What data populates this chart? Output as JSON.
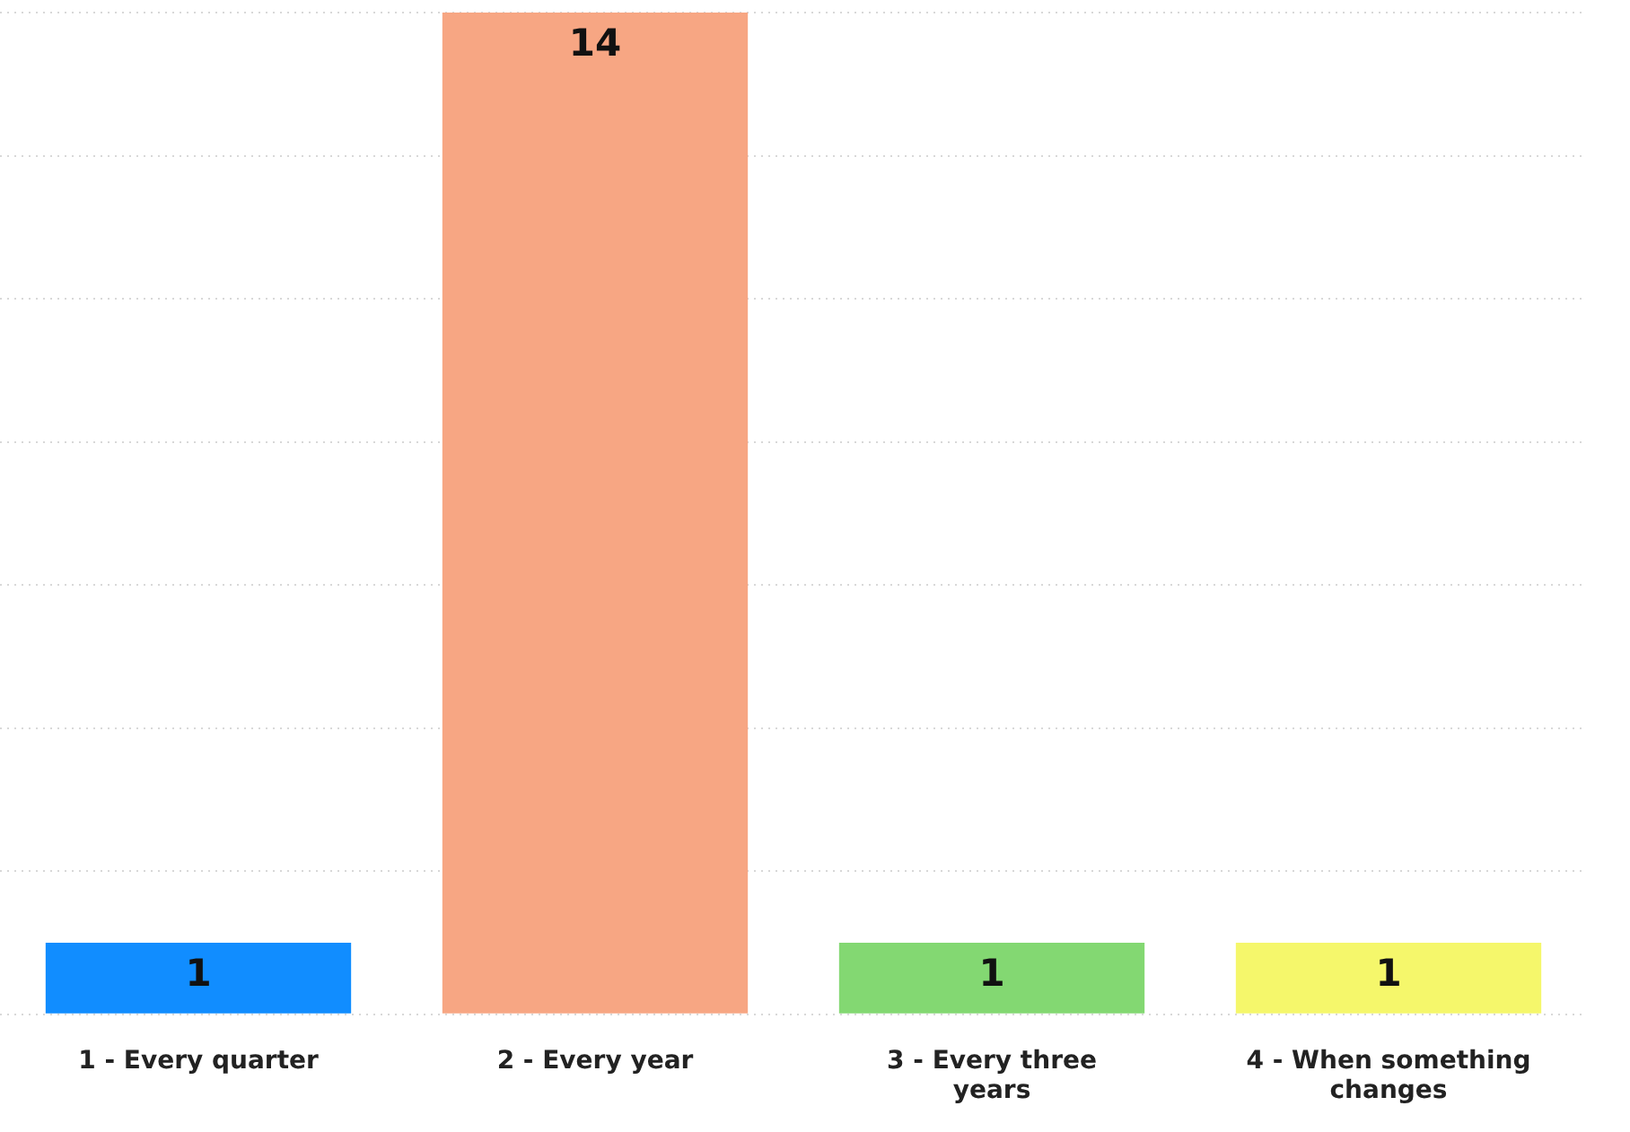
{
  "chart_data": {
    "type": "bar",
    "categories": [
      "1 - Every quarter",
      "2 - Every year",
      "3 - Every three years",
      "4 - When something changes"
    ],
    "values": [
      1,
      14,
      1,
      1
    ],
    "colors": [
      "#118dff",
      "#f7a683",
      "#83d872",
      "#f5f76b"
    ],
    "ylim": [
      0,
      14
    ],
    "yticks": [
      {
        "value": 0,
        "label": null
      },
      {
        "value": 2,
        "label": null
      },
      {
        "value": 4,
        "label": null
      },
      {
        "value": 6,
        "label": null
      },
      {
        "value": 8,
        "label": null
      },
      {
        "value": 10,
        "label": null
      },
      {
        "value": 12,
        "label": null
      },
      {
        "value": 14,
        "label": null
      }
    ],
    "tick_labels": "x",
    "grid": "y",
    "legend": false,
    "data_labels": true
  }
}
